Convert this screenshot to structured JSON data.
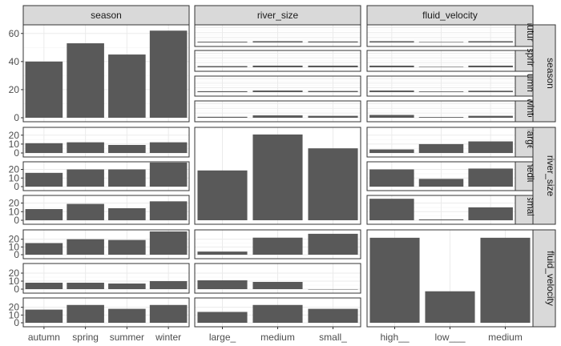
{
  "chart_data": {
    "type": "bar",
    "layout": "facet-grid",
    "col_strips": [
      "season",
      "river_size",
      "fluid_velocity"
    ],
    "row_strips": [
      "season",
      "river_size",
      "fluid_velocity"
    ],
    "categories": {
      "season": [
        "autumn",
        "spring",
        "summer",
        "winter"
      ],
      "river_size": [
        "large_",
        "medium",
        "small_"
      ],
      "fluid_velocity": [
        "high__",
        "low___",
        "medium"
      ]
    },
    "col_tick_labels": [
      [
        "autumn",
        "spring",
        "summer",
        "winter"
      ],
      [
        "large_",
        "medium",
        "small_"
      ],
      [
        "high__",
        "low___",
        "medium"
      ]
    ],
    "row_subpanels": [
      {
        "ticks": [
          0,
          20,
          40,
          60
        ],
        "ylim": [
          0,
          65
        ],
        "inner_strips": [
          "autumn",
          "spring",
          "summer",
          "winter"
        ]
      },
      {
        "ticks": [
          0,
          10,
          20
        ],
        "ylim": [
          0,
          27
        ],
        "inner_strips": [
          "large_",
          "medium",
          "small_"
        ]
      },
      {
        "ticks": [
          0,
          10,
          20
        ],
        "ylim": [
          0,
          30
        ],
        "inner_strips": [
          "high__",
          "low___",
          "medium"
        ]
      }
    ],
    "panels": {
      "season|season": [
        40,
        53,
        45,
        62
      ],
      "season|river_size": [
        [
          3,
          5,
          4
        ],
        [
          5,
          7,
          7
        ],
        [
          4,
          7,
          5
        ],
        [
          4,
          10,
          8
        ]
      ],
      "season|fluid_velocity": [
        [
          5,
          2,
          5
        ],
        [
          7,
          2,
          7
        ],
        [
          7,
          3,
          6
        ],
        [
          12,
          3,
          8
        ]
      ],
      "river_size|season": [
        [
          11,
          12,
          9,
          12
        ],
        [
          16,
          20,
          20,
          28
        ],
        [
          13,
          19,
          14,
          22
        ]
      ],
      "river_size|river_size": [
        18,
        31,
        26
      ],
      "river_size|fluid_velocity": [
        [
          4,
          10,
          13
        ],
        [
          20,
          9,
          21
        ],
        [
          25,
          1,
          15
        ]
      ],
      "fluid_velocity|season": [
        [
          15,
          20,
          19,
          30
        ],
        [
          8,
          8,
          7,
          10
        ],
        [
          17,
          23,
          18,
          23
        ]
      ],
      "fluid_velocity|river_size": [
        [
          4,
          22,
          27
        ],
        [
          11,
          9,
          0
        ],
        [
          14,
          23,
          18
        ]
      ],
      "fluid_velocity|fluid_velocity": [
        27,
        10,
        27
      ]
    },
    "grid": true
  }
}
